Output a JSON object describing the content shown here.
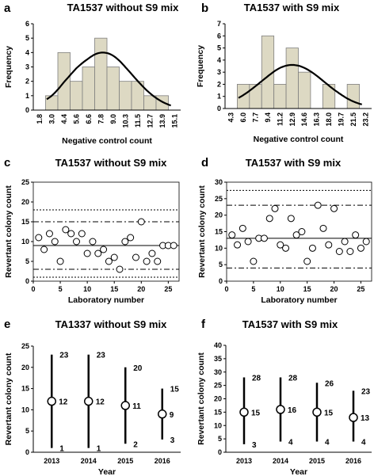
{
  "chart_data": [
    {
      "panel": "a",
      "type": "bar",
      "title": "TA1537 without S9 mix",
      "xlabel": "Negative control count",
      "ylabel": "Frequency",
      "categories": [
        "1.8",
        "3.0",
        "4.4",
        "5.6",
        "6.6",
        "7.8",
        "9.0",
        "10.3",
        "11.5",
        "12.7",
        "13.9",
        "15.1"
      ],
      "values": [
        0,
        1,
        4,
        2,
        3,
        5,
        3,
        2,
        2,
        1,
        1,
        0
      ],
      "ylim": [
        0,
        6
      ],
      "yticks": [
        0,
        1,
        2,
        3,
        4,
        5,
        6
      ],
      "fit_curve": {
        "type": "normal",
        "mean": 8.0,
        "sd": 3.0,
        "peak": 4.0
      },
      "colors": {
        "bar": "#ddd9c3"
      }
    },
    {
      "panel": "b",
      "type": "bar",
      "title": "TA1537 with S9 mix",
      "xlabel": "Negative control count",
      "ylabel": "Frequency",
      "categories": [
        "4.3",
        "6.0",
        "7.7",
        "9.4",
        "11.2",
        "12.9",
        "14.6",
        "16.3",
        "18.0",
        "19.7",
        "21.5",
        "23.2"
      ],
      "values": [
        0,
        2,
        2,
        6,
        2,
        5,
        3,
        0,
        2,
        0,
        2,
        0
      ],
      "ylim": [
        0,
        7
      ],
      "yticks": [
        0,
        1,
        2,
        3,
        4,
        5,
        6,
        7
      ],
      "fit_curve": {
        "type": "normal",
        "mean": 12.9,
        "sd": 4.5,
        "peak": 3.6
      },
      "colors": {
        "bar": "#ddd9c3"
      }
    },
    {
      "panel": "c",
      "type": "scatter",
      "title": "TA1537 without S9 mix",
      "xlabel": "Laboratory number",
      "ylabel": "Revertant colony count",
      "xlim": [
        0,
        27
      ],
      "ylim": [
        0,
        25
      ],
      "xticks": [
        0,
        5,
        10,
        15,
        20,
        25
      ],
      "yticks": [
        0,
        5,
        10,
        15,
        20,
        25
      ],
      "x": [
        1,
        2,
        3,
        4,
        5,
        6,
        7,
        8,
        9,
        10,
        11,
        12,
        13,
        14,
        15,
        16,
        17,
        18,
        19,
        20,
        21,
        22,
        23,
        24,
        25,
        26
      ],
      "y": [
        11,
        8,
        12,
        10,
        5,
        13,
        12,
        10,
        12,
        7,
        10,
        7,
        8,
        5,
        6,
        3,
        10,
        11,
        6,
        15,
        5,
        7,
        5,
        9,
        9,
        9
      ],
      "hlines": [
        {
          "value": 9,
          "style": "solid"
        },
        {
          "value": 15,
          "style": "dashdot"
        },
        {
          "value": 3,
          "style": "dashdot"
        },
        {
          "value": 18,
          "style": "dotted"
        },
        {
          "value": 1,
          "style": "dotted"
        }
      ]
    },
    {
      "panel": "d",
      "type": "scatter",
      "title": "TA1537 with S9 mix",
      "xlabel": "Laboratory number",
      "ylabel": "Revertant colony count",
      "xlim": [
        0,
        27
      ],
      "ylim": [
        0,
        30
      ],
      "xticks": [
        0,
        5,
        10,
        15,
        20,
        25
      ],
      "yticks": [
        0,
        5,
        10,
        15,
        20,
        25,
        30
      ],
      "x": [
        1,
        2,
        3,
        4,
        5,
        6,
        7,
        8,
        9,
        10,
        11,
        12,
        13,
        14,
        15,
        16,
        17,
        18,
        19,
        20,
        21,
        22,
        23,
        24,
        25,
        26
      ],
      "y": [
        14,
        11,
        16,
        12,
        6,
        13,
        13,
        19,
        22,
        11,
        10,
        19,
        14,
        15,
        6,
        10,
        23,
        16,
        11,
        22,
        9,
        12,
        9,
        14,
        10,
        12
      ],
      "hlines": [
        {
          "value": 13,
          "style": "solid"
        },
        {
          "value": 23,
          "style": "dashdot"
        },
        {
          "value": 4,
          "style": "dashdot"
        },
        {
          "value": 27.5,
          "style": "dotted"
        }
      ]
    },
    {
      "panel": "e",
      "type": "range",
      "title": "TA1337 without S9 mix",
      "xlabel": "Year",
      "ylabel": "Revertant colony count",
      "ylim": [
        0,
        25
      ],
      "yticks": [
        0,
        5,
        10,
        15,
        20,
        25
      ],
      "categories": [
        "2013",
        "2014",
        "2015",
        "2016"
      ],
      "mean": [
        12,
        12,
        11,
        9
      ],
      "min": [
        1,
        1,
        2,
        3
      ],
      "max": [
        23,
        23,
        20,
        15
      ],
      "labels": {
        "mean": [
          "12",
          "12",
          "11",
          "9"
        ],
        "min": [
          "1",
          "1",
          "2",
          "3"
        ],
        "max": [
          "23",
          "23",
          "20",
          "15"
        ]
      }
    },
    {
      "panel": "f",
      "type": "range",
      "title": "TA1537 with S9 mix",
      "xlabel": "Year",
      "ylabel": "Revertant colony count",
      "ylim": [
        0,
        40
      ],
      "yticks": [
        0,
        5,
        10,
        15,
        20,
        25,
        30,
        35,
        40
      ],
      "categories": [
        "2013",
        "2014",
        "2015",
        "2016"
      ],
      "mean": [
        15,
        16,
        15,
        13
      ],
      "min": [
        3,
        4,
        4,
        4
      ],
      "max": [
        28,
        28,
        26,
        23
      ],
      "labels": {
        "mean": [
          "15",
          "16",
          "15",
          "13"
        ],
        "min": [
          "3",
          "4",
          "4",
          "4"
        ],
        "max": [
          "28",
          "28",
          "26",
          "23"
        ]
      }
    }
  ]
}
